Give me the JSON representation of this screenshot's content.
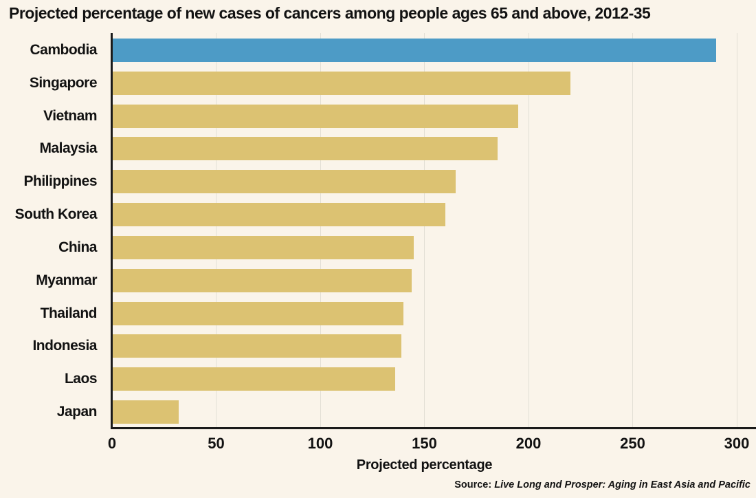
{
  "title": "Projected percentage of new cases of cancers among people ages 65 and above, 2012-35",
  "source": {
    "prefix": "Source:",
    "text": "Live Long and Prosper: Aging in East Asia and Pacific"
  },
  "colors": {
    "background": "#FAF4EA",
    "highlight_bar": "#4D9BC6",
    "default_bar": "#DCC272",
    "gridline": "#E2DFD5",
    "axis": "#1A1A1A",
    "text": "#121212"
  },
  "chart_data": {
    "type": "bar",
    "orientation": "horizontal",
    "title": "Projected percentage of new cases of cancers among people ages 65 and above, 2012-35",
    "xlabel": "Projected percentage",
    "ylabel": "",
    "xlim": [
      0,
      300
    ],
    "xticks": [
      0,
      50,
      100,
      150,
      200,
      250,
      300
    ],
    "grid": true,
    "legend": false,
    "categories": [
      "Cambodia",
      "Singapore",
      "Vietnam",
      "Malaysia",
      "Philippines",
      "South Korea",
      "China",
      "Myanmar",
      "Thailand",
      "Indonesia",
      "Laos",
      "Japan"
    ],
    "values": [
      290,
      220,
      195,
      185,
      165,
      160,
      145,
      144,
      140,
      139,
      136,
      32
    ],
    "highlighted_category": "Cambodia"
  }
}
